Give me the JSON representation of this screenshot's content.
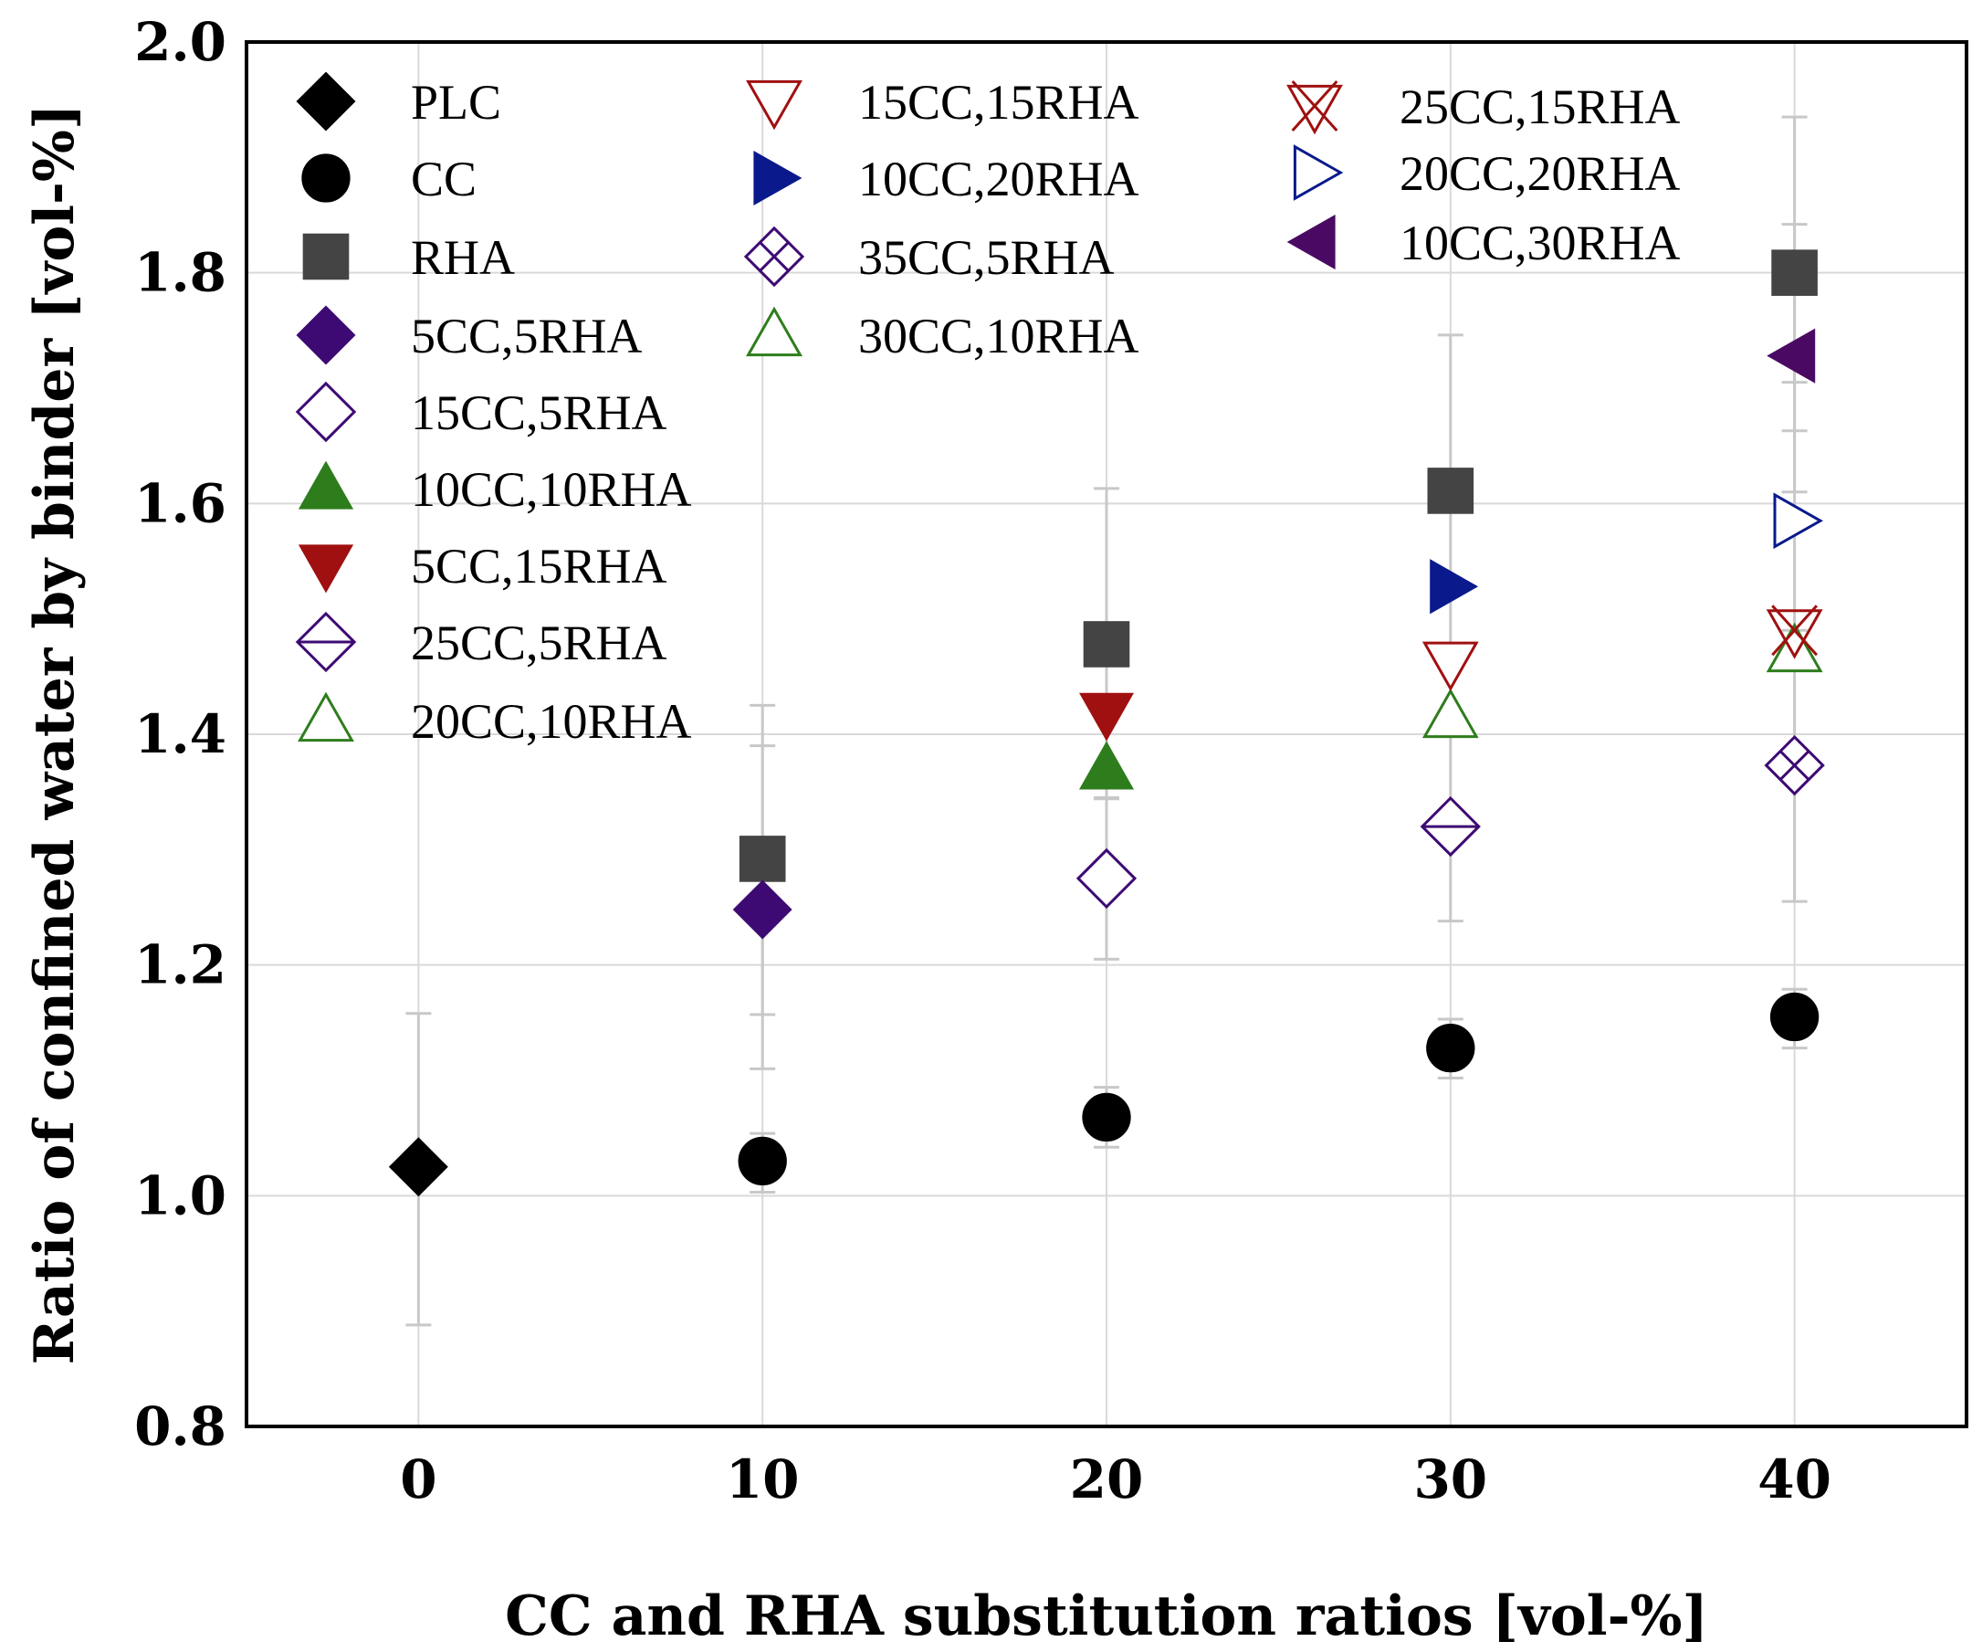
{
  "chart_data": {
    "type": "scatter",
    "xlabel": "CC and RHA substitution ratios [vol-%]",
    "ylabel": "Ratio of confined water by binder [vol-%]",
    "xlim": [
      -5,
      45
    ],
    "ylim": [
      0.8,
      2.0
    ],
    "xticks": [
      0,
      10,
      20,
      30,
      40
    ],
    "yticks": [
      0.8,
      1.0,
      1.2,
      1.4,
      1.6,
      1.8,
      2.0
    ],
    "ytick_labels": [
      "0.8",
      "1.0",
      "1.2",
      "1.4",
      "1.6",
      "1.8",
      "2.0"
    ],
    "xtick_labels": [
      "0",
      "10",
      "20",
      "30",
      "40"
    ],
    "grid": true,
    "legend_placement": "top-left, three columns",
    "series": [
      {
        "name": "PLC",
        "marker": "diamond",
        "fill": "filled",
        "color": "#000000",
        "points": [
          {
            "x": 0,
            "y": 1.025,
            "err_low": 0.888,
            "err_high": 1.158
          }
        ]
      },
      {
        "name": "CC",
        "marker": "circle",
        "fill": "filled",
        "color": "#000000",
        "points": [
          {
            "x": 10,
            "y": 1.03,
            "err_low": 1.003,
            "err_high": 1.054
          },
          {
            "x": 20,
            "y": 1.068,
            "err_low": 1.042,
            "err_high": 1.094
          },
          {
            "x": 30,
            "y": 1.128,
            "err_low": 1.102,
            "err_high": 1.153
          },
          {
            "x": 40,
            "y": 1.155,
            "err_low": 1.128,
            "err_high": 1.179
          }
        ]
      },
      {
        "name": "RHA",
        "marker": "square",
        "fill": "filled",
        "color": "#444444",
        "points": [
          {
            "x": 10,
            "y": 1.292,
            "err_low": 1.157,
            "err_high": 1.425
          },
          {
            "x": 20,
            "y": 1.478,
            "err_low": 1.344,
            "err_high": 1.613
          },
          {
            "x": 30,
            "y": 1.611,
            "err_low": 1.476,
            "err_high": 1.746
          },
          {
            "x": 40,
            "y": 1.8,
            "err_low": 1.663,
            "err_high": 1.935
          }
        ]
      },
      {
        "name": "5CC,5RHA",
        "marker": "diamond",
        "fill": "filled",
        "color": "#3d0a73",
        "points": [
          {
            "x": 10,
            "y": 1.248,
            "err_low": 1.11,
            "err_high": 1.39
          }
        ]
      },
      {
        "name": "15CC,5RHA",
        "marker": "diamond",
        "fill": "open",
        "color": "#3d0a73",
        "points": [
          {
            "x": 20,
            "y": 1.275,
            "err_low": 1.205,
            "err_high": 1.345
          }
        ]
      },
      {
        "name": "10CC,10RHA",
        "marker": "triangle-up",
        "fill": "filled",
        "color": "#2e7d1c",
        "points": [
          {
            "x": 20,
            "y": 1.37
          }
        ]
      },
      {
        "name": "5CC,15RHA",
        "marker": "triangle-down",
        "fill": "filled",
        "color": "#a01010",
        "points": [
          {
            "x": 20,
            "y": 1.418
          }
        ]
      },
      {
        "name": "25CC,5RHA",
        "marker": "diamond-h",
        "fill": "open",
        "color": "#3d0a73",
        "points": [
          {
            "x": 30,
            "y": 1.32,
            "err_low": 1.238,
            "err_high": 1.4
          }
        ]
      },
      {
        "name": "20CC,10RHA",
        "marker": "triangle-up",
        "fill": "open",
        "color": "#2e7d1c",
        "points": [
          {
            "x": 30,
            "y": 1.415
          }
        ]
      },
      {
        "name": "15CC,15RHA",
        "marker": "triangle-down",
        "fill": "open",
        "color": "#a01010",
        "points": [
          {
            "x": 30,
            "y": 1.462
          }
        ]
      },
      {
        "name": "10CC,20RHA",
        "marker": "triangle-right",
        "fill": "filled",
        "color": "#0a1a8c",
        "points": [
          {
            "x": 30,
            "y": 1.528
          }
        ]
      },
      {
        "name": "35CC,5RHA",
        "marker": "crossed-diamond",
        "fill": "open",
        "color": "#3d0a73",
        "points": [
          {
            "x": 40,
            "y": 1.373,
            "err_low": 1.255,
            "err_high": 1.49
          }
        ]
      },
      {
        "name": "30CC,10RHA",
        "marker": "triangle-up",
        "fill": "open",
        "color": "#2e7d1c",
        "points": [
          {
            "x": 40,
            "y": 1.472
          }
        ]
      },
      {
        "name": "25CC,15RHA",
        "marker": "star-triangle",
        "fill": "open",
        "color": "#a01010",
        "points": [
          {
            "x": 40,
            "y": 1.49
          }
        ]
      },
      {
        "name": "20CC,20RHA",
        "marker": "triangle-right",
        "fill": "open",
        "color": "#0a1a8c",
        "points": [
          {
            "x": 40,
            "y": 1.585,
            "err_low": 1.48,
            "err_high": 1.705
          }
        ]
      },
      {
        "name": "10CC,30RHA",
        "marker": "triangle-left",
        "fill": "filled",
        "color": "#4a0a63",
        "points": [
          {
            "x": 40,
            "y": 1.728,
            "err_low": 1.61,
            "err_high": 1.842
          }
        ]
      }
    ]
  }
}
